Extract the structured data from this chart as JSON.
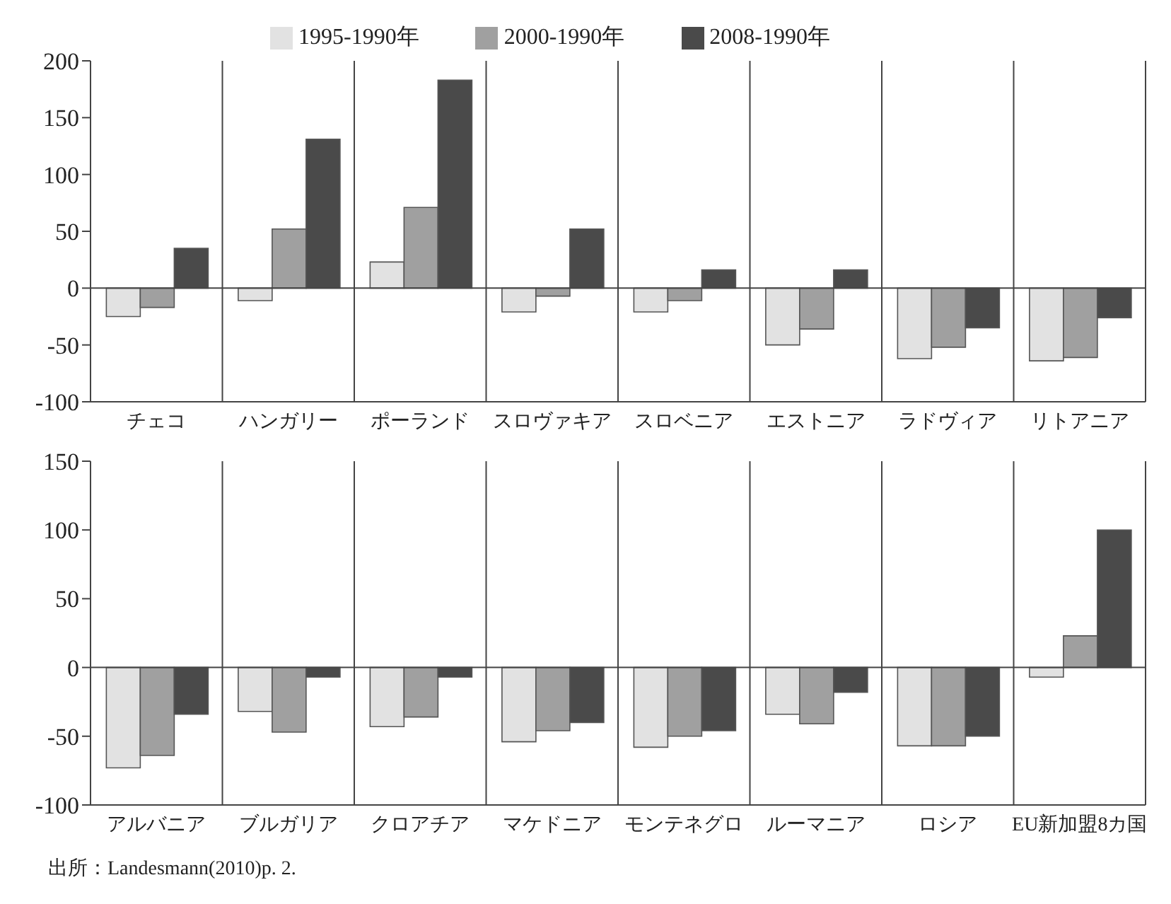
{
  "chart_data": [
    {
      "type": "bar",
      "categories": [
        "チェコ",
        "ハンガリー",
        "ポーランド",
        "スロヴァキア",
        "スロベニア",
        "エストニア",
        "ラドヴィア",
        "リトアニア"
      ],
      "series": [
        {
          "name": "1995-1990年",
          "color": "#e2e2e2",
          "values": [
            -25,
            -11,
            23,
            -21,
            -21,
            -50,
            -62,
            -64
          ]
        },
        {
          "name": "2000-1990年",
          "color": "#a0a0a0",
          "values": [
            -17,
            52,
            71,
            -7,
            -11,
            -36,
            -52,
            -61
          ]
        },
        {
          "name": "2008-1990年",
          "color": "#4a4a4a",
          "values": [
            35,
            131,
            183,
            52,
            16,
            16,
            -35,
            -26
          ]
        }
      ],
      "ylim": [
        -100,
        200
      ],
      "yticks": [
        -100,
        -50,
        0,
        50,
        100,
        150,
        200
      ],
      "grid": "x",
      "legend": "top",
      "ref_lines": [
        {
          "axis": "y",
          "value": 0
        }
      ]
    },
    {
      "type": "bar",
      "categories": [
        "アルバニア",
        "ブルガリア",
        "クロアチア",
        "マケドニア",
        "モンテネグロ",
        "ルーマニア",
        "ロシア",
        "EU新加盟8カ国"
      ],
      "series": [
        {
          "color": "#e2e2e2",
          "values": [
            -73,
            -32,
            -43,
            -54,
            -58,
            -34,
            -57,
            -7
          ]
        },
        {
          "color": "#a0a0a0",
          "values": [
            -64,
            -47,
            -36,
            -46,
            -50,
            -41,
            -57,
            23
          ]
        },
        {
          "color": "#4a4a4a",
          "values": [
            -34,
            -7,
            -7,
            -40,
            -46,
            -18,
            -50,
            100
          ]
        }
      ],
      "ylim": [
        -100,
        150
      ],
      "yticks": [
        -100,
        -50,
        0,
        50,
        100,
        150
      ],
      "grid": "x",
      "ref_lines": [
        {
          "axis": "y",
          "value": 0
        }
      ],
      "annotations": [
        "出所：Landesmann(2010)p. 2."
      ]
    }
  ]
}
